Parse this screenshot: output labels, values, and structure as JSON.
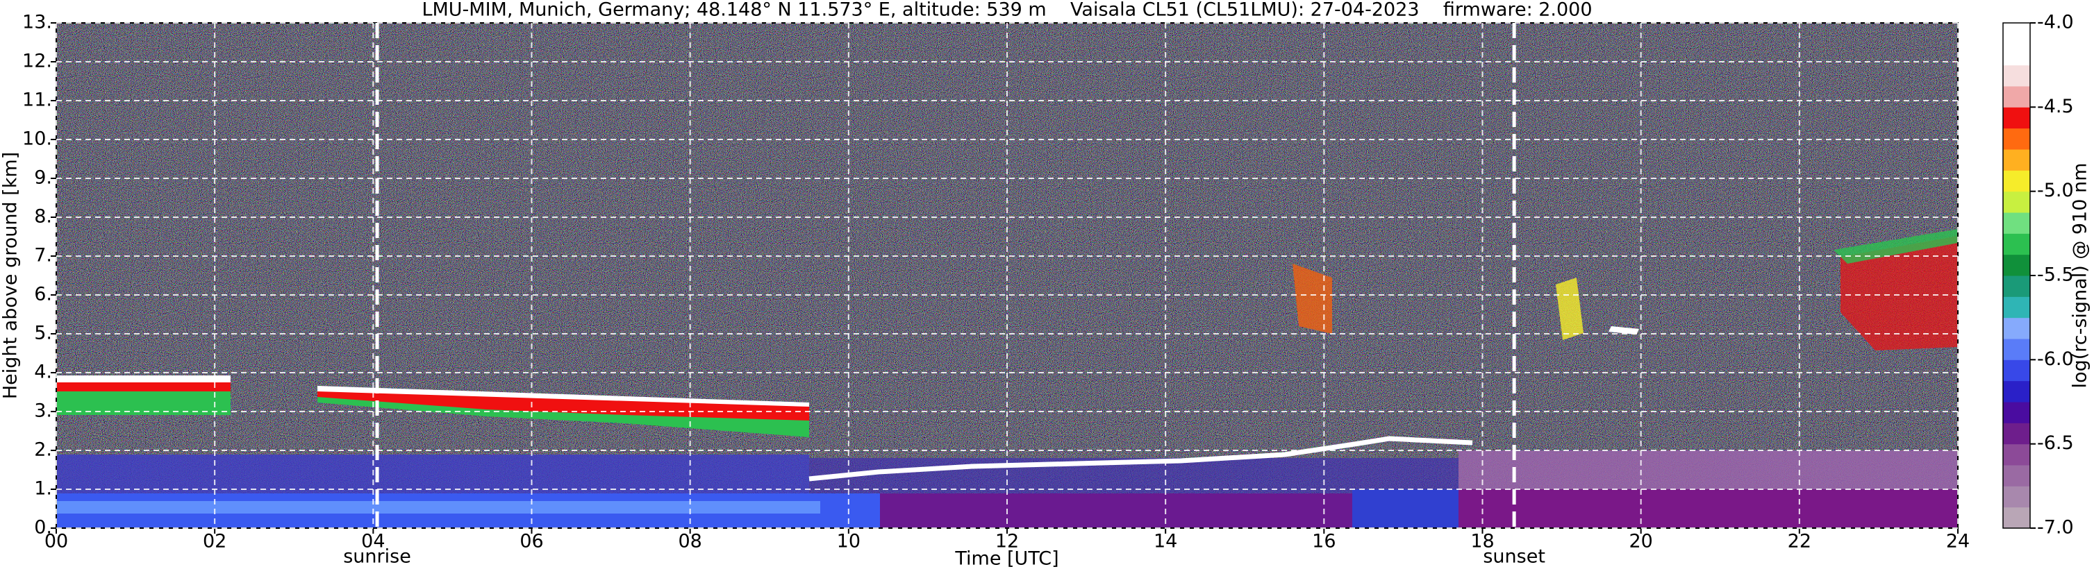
{
  "chart_data": {
    "type": "heatmap",
    "title": "LMU-MIM, Munich, Germany; 48.148° N 11.573° E, altitude: 539 m    Vaisala CL51 (CL51LMU): 27-04-2023    firmware: 2.000",
    "x_label": "Time [UTC]",
    "y_label": "Height above ground [km]",
    "xlim": [
      0,
      24
    ],
    "ylim": [
      0,
      13
    ],
    "xticks": [
      {
        "value": 0,
        "label": "00"
      },
      {
        "value": 2,
        "label": "02"
      },
      {
        "value": 4,
        "label": "04"
      },
      {
        "value": 6,
        "label": "06"
      },
      {
        "value": 8,
        "label": "08"
      },
      10,
      12,
      14,
      16,
      18,
      20,
      22,
      24
    ],
    "yticks": [
      {
        "value": 0,
        "label": "0."
      },
      {
        "value": 1,
        "label": "1."
      },
      {
        "value": 2,
        "label": "2."
      },
      {
        "value": 3,
        "label": "3."
      },
      {
        "value": 4,
        "label": "4."
      },
      {
        "value": 5,
        "label": "5."
      },
      {
        "value": 6,
        "label": "6."
      },
      {
        "value": 7,
        "label": "7."
      },
      {
        "value": 8,
        "label": "8."
      },
      {
        "value": 9,
        "label": "9."
      },
      {
        "value": 10,
        "label": "10."
      },
      {
        "value": 11,
        "label": "11."
      },
      {
        "value": 12,
        "label": "12."
      },
      {
        "value": 13,
        "label": "13."
      }
    ],
    "grid": true,
    "markers": [
      {
        "label": "sunrise",
        "x": 4.05
      },
      {
        "label": "sunset",
        "x": 18.4
      }
    ],
    "colorbar": {
      "label": "log(rc-signal) @ 910 nm",
      "lim": [
        -7,
        -4
      ],
      "ticks": [
        {
          "value": -7,
          "label": "-7.0"
        },
        -6.5,
        {
          "value": -6,
          "label": "-6.0"
        },
        -5.5,
        {
          "value": -5,
          "label": "-5.0"
        },
        -4.5,
        {
          "value": -4,
          "label": "-4.0"
        }
      ],
      "colors": [
        "#b9a6b6",
        "#a888ad",
        "#9a6aa3",
        "#8c4a98",
        "#6e1e8c",
        "#4a0ca0",
        "#2a20c8",
        "#3848e8",
        "#5a7cf8",
        "#86aafc",
        "#2fb5b5",
        "#1a9a78",
        "#10903a",
        "#2cc050",
        "#70e080",
        "#c8f040",
        "#f6ec2a",
        "#ffb020",
        "#ff6a10",
        "#f01010",
        "#f0a8a8",
        "#f6dede",
        "#ffffff",
        "#ffffff"
      ]
    }
  }
}
